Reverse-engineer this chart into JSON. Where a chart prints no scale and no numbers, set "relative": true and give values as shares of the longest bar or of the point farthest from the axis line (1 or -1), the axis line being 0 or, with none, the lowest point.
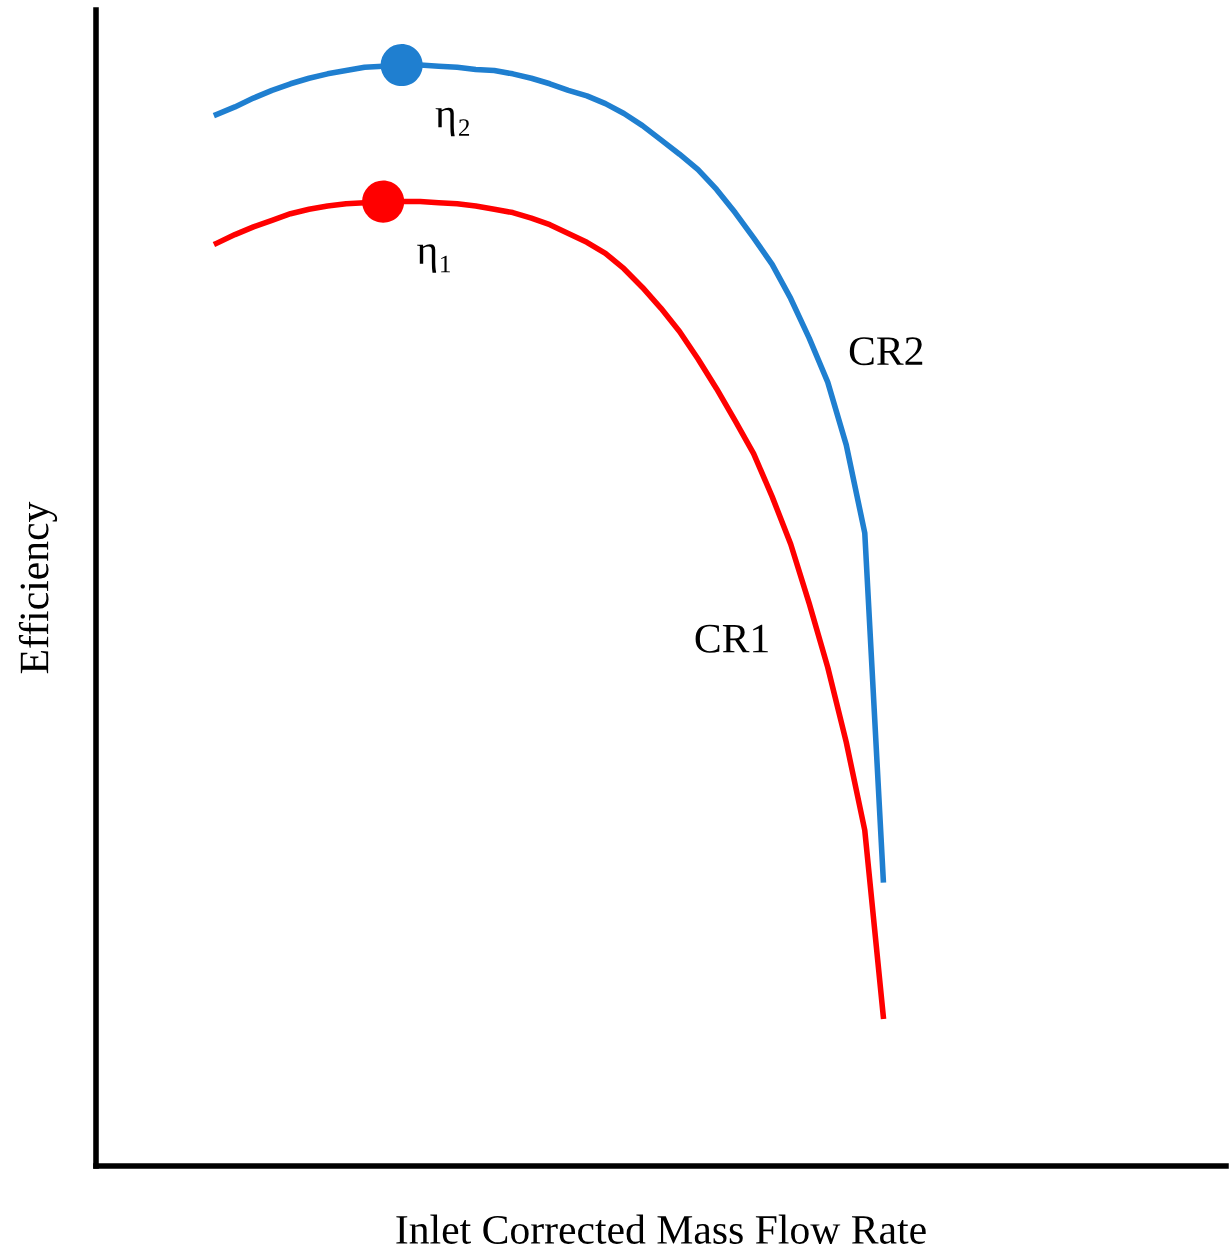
{
  "chart_data": {
    "type": "line",
    "relative": true,
    "xlabel": "Inlet Corrected Mass Flow Rate",
    "ylabel": "Efficiency",
    "marker": "none",
    "line_style": "solid",
    "categories": [
      null,
      null,
      null,
      null,
      null,
      null,
      null,
      null,
      null,
      null,
      null,
      null,
      null,
      null,
      null,
      null,
      null,
      null,
      null,
      null,
      null,
      null,
      null,
      null,
      null,
      null,
      null,
      null,
      null,
      null,
      null,
      null,
      null,
      null,
      null,
      null,
      null,
      null,
      null,
      null,
      null,
      null,
      null,
      null,
      null,
      null,
      null,
      null,
      null,
      null,
      null,
      null,
      null,
      null,
      null,
      null,
      null,
      null,
      null,
      null,
      null
    ],
    "series": [
      {
        "name": "CR1",
        "color": "#ff0000",
        "values": [
          null,
          null,
          null,
          null,
          null,
          null,
          0.838,
          0.846,
          0.853,
          0.859,
          0.865,
          0.869,
          0.872,
          0.874,
          0.875,
          0.876,
          0.876,
          0.876,
          0.875,
          0.874,
          0.872,
          0.869,
          0.866,
          0.861,
          0.855,
          0.847,
          0.839,
          0.829,
          0.815,
          0.798,
          0.779,
          0.758,
          0.733,
          0.706,
          0.677,
          0.647,
          0.608,
          0.565,
          0.511,
          0.453,
          0.385,
          0.305,
          0.136,
          null,
          null,
          null,
          null,
          null,
          null,
          null,
          null,
          null,
          null,
          null,
          null,
          null,
          null,
          null,
          null,
          null,
          null
        ]
      },
      {
        "name": "CR2",
        "color": "#1f7fd0",
        "values": [
          null,
          null,
          null,
          null,
          null,
          null,
          0.955,
          0.962,
          0.97,
          0.977,
          0.983,
          0.988,
          0.992,
          0.995,
          0.998,
          0.999,
          1.0,
          1.0,
          0.999,
          0.998,
          0.996,
          0.995,
          0.992,
          0.988,
          0.983,
          0.977,
          0.972,
          0.965,
          0.956,
          0.945,
          0.932,
          0.919,
          0.905,
          0.887,
          0.866,
          0.843,
          0.819,
          0.788,
          0.752,
          0.712,
          0.655,
          0.575,
          0.26,
          null,
          null,
          null,
          null,
          null,
          null,
          null,
          null,
          null,
          null,
          null,
          null,
          null,
          null,
          null,
          null,
          null,
          null
        ]
      }
    ],
    "annotations": [
      "η₁",
      "η₂"
    ]
  }
}
